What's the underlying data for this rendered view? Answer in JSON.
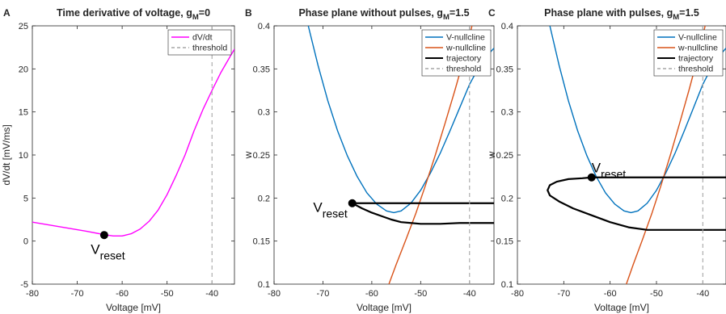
{
  "figure": {
    "panels": [
      {
        "letter": "A",
        "title_main": "Time derivative of voltage, g",
        "title_sub": "M",
        "title_end": "=0"
      },
      {
        "letter": "B",
        "title_main": "Phase plane without pulses, g",
        "title_sub": "M",
        "title_end": "=1.5"
      },
      {
        "letter": "C",
        "title_main": "Phase plane with pulses, g",
        "title_sub": "M",
        "title_end": "=1.5"
      }
    ]
  },
  "chart_data": [
    {
      "type": "line",
      "panel": "A",
      "title": "Time derivative of voltage, g_M=0",
      "xlabel": "Voltage [mV]",
      "ylabel": "dV/dt [mV/ms]",
      "xlim": [
        -80,
        -35
      ],
      "ylim": [
        -5,
        25
      ],
      "xticks": [
        -80,
        -70,
        -60,
        -50,
        -40
      ],
      "yticks": [
        -5,
        0,
        5,
        10,
        15,
        20,
        25
      ],
      "legend_position": "top-right",
      "series": [
        {
          "name": "dV/dt",
          "color": "#ff00ff",
          "style": "solid",
          "x": [
            -80,
            -76,
            -72,
            -68,
            -64,
            -62,
            -60,
            -58,
            -56,
            -54,
            -52,
            -50,
            -48,
            -46,
            -44,
            -42,
            -40,
            -38,
            -36,
            -35
          ],
          "y": [
            2.2,
            1.85,
            1.5,
            1.15,
            0.75,
            0.6,
            0.6,
            0.85,
            1.4,
            2.3,
            3.6,
            5.4,
            7.6,
            10.0,
            12.8,
            15.3,
            17.5,
            19.6,
            21.4,
            22.3
          ]
        },
        {
          "name": "threshold",
          "color": "#a6a6a6",
          "style": "dashed",
          "x": [
            -40,
            -40
          ],
          "y": [
            -5,
            25
          ]
        }
      ],
      "annotations": [
        {
          "label": "V",
          "sub": "reset",
          "x": -64,
          "y": 0.7,
          "text_x": -67,
          "text_y": -1.5
        }
      ]
    },
    {
      "type": "line",
      "panel": "B",
      "title": "Phase plane without pulses, g_M=1.5",
      "xlabel": "Voltage [mV]",
      "ylabel": "w",
      "xlim": [
        -80,
        -35
      ],
      "ylim": [
        0.1,
        0.4
      ],
      "xticks": [
        -80,
        -70,
        -60,
        -50,
        -40
      ],
      "yticks": [
        0.1,
        0.15,
        0.2,
        0.25,
        0.3,
        0.35,
        0.4
      ],
      "legend_position": "top-right",
      "series": [
        {
          "name": "V-nullcline",
          "color": "#0072bd",
          "style": "solid",
          "x": [
            -73,
            -71,
            -69,
            -67,
            -65,
            -63,
            -61,
            -59,
            -57,
            -55.5,
            -54,
            -52,
            -50,
            -48,
            -46,
            -44,
            -42,
            -40,
            -38,
            -36,
            -35
          ],
          "y": [
            0.4,
            0.354,
            0.313,
            0.278,
            0.249,
            0.225,
            0.206,
            0.193,
            0.185,
            0.183,
            0.185,
            0.194,
            0.209,
            0.229,
            0.252,
            0.278,
            0.305,
            0.332,
            0.353,
            0.368,
            0.374
          ]
        },
        {
          "name": "w-nullcline",
          "color": "#d95319",
          "style": "solid",
          "x": [
            -56.5,
            -55,
            -53,
            -51,
            -49,
            -47,
            -45,
            -43,
            -41,
            -39.5
          ],
          "y": [
            0.1,
            0.123,
            0.152,
            0.182,
            0.215,
            0.25,
            0.287,
            0.325,
            0.365,
            0.4
          ]
        },
        {
          "name": "trajectory",
          "color": "#000000",
          "style": "solid",
          "segments": [
            {
              "x": [
                -64,
                -35
              ],
              "y": [
                0.194,
                0.194
              ]
            },
            {
              "x": [
                -64,
                -62,
                -60,
                -58,
                -56,
                -54,
                -52,
                -50,
                -46,
                -42,
                -38,
                -35
              ],
              "y": [
                0.194,
                0.188,
                0.183,
                0.179,
                0.175,
                0.172,
                0.171,
                0.17,
                0.17,
                0.171,
                0.171,
                0.171
              ]
            }
          ]
        },
        {
          "name": "threshold",
          "color": "#a6a6a6",
          "style": "dashed",
          "x": [
            -40,
            -40
          ],
          "y": [
            0.1,
            0.4
          ]
        }
      ],
      "annotations": [
        {
          "label": "V",
          "sub": "reset",
          "x": -64,
          "y": 0.194,
          "text_x": -72,
          "text_y": 0.184
        }
      ]
    },
    {
      "type": "line",
      "panel": "C",
      "title": "Phase plane with pulses, g_M=1.5",
      "xlabel": "Voltage [mV]",
      "ylabel": "w",
      "xlim": [
        -80,
        -35
      ],
      "ylim": [
        0.1,
        0.4
      ],
      "xticks": [
        -80,
        -70,
        -60,
        -50,
        -40
      ],
      "yticks": [
        0.1,
        0.15,
        0.2,
        0.25,
        0.3,
        0.35,
        0.4
      ],
      "legend_position": "top-right",
      "series": [
        {
          "name": "V-nullcline",
          "color": "#0072bd",
          "style": "solid",
          "x": [
            -73,
            -71,
            -69,
            -67,
            -65,
            -63,
            -61,
            -59,
            -57,
            -55.5,
            -54,
            -52,
            -50,
            -48,
            -46,
            -44,
            -42,
            -40,
            -38,
            -36,
            -35
          ],
          "y": [
            0.4,
            0.354,
            0.313,
            0.278,
            0.249,
            0.225,
            0.206,
            0.193,
            0.185,
            0.183,
            0.185,
            0.194,
            0.209,
            0.229,
            0.252,
            0.278,
            0.305,
            0.332,
            0.353,
            0.368,
            0.374
          ]
        },
        {
          "name": "w-nullcline",
          "color": "#d95319",
          "style": "solid",
          "x": [
            -56.5,
            -55,
            -53,
            -51,
            -49,
            -47,
            -45,
            -43,
            -41,
            -39.5
          ],
          "y": [
            0.1,
            0.123,
            0.152,
            0.182,
            0.215,
            0.25,
            0.287,
            0.325,
            0.365,
            0.4
          ]
        },
        {
          "name": "trajectory",
          "color": "#000000",
          "style": "solid",
          "segments": [
            {
              "x": [
                -64,
                -50,
                -35
              ],
              "y": [
                0.224,
                0.224,
                0.224
              ]
            },
            {
              "x": [
                -64,
                -66,
                -69,
                -71.5,
                -73,
                -73.5,
                -73,
                -71,
                -68,
                -64,
                -60,
                -56,
                -52,
                -48,
                -44,
                -40,
                -35
              ],
              "y": [
                0.224,
                0.223,
                0.222,
                0.219,
                0.215,
                0.209,
                0.203,
                0.196,
                0.188,
                0.18,
                0.172,
                0.166,
                0.163,
                0.163,
                0.163,
                0.163,
                0.163
              ]
            }
          ]
        },
        {
          "name": "threshold",
          "color": "#a6a6a6",
          "style": "dashed",
          "x": [
            -40,
            -40
          ],
          "y": [
            0.1,
            0.4
          ]
        }
      ],
      "annotations": [
        {
          "label": "V",
          "sub": "reset",
          "x": -64,
          "y": 0.224,
          "text_x": -64,
          "text_y": 0.23
        }
      ]
    }
  ]
}
